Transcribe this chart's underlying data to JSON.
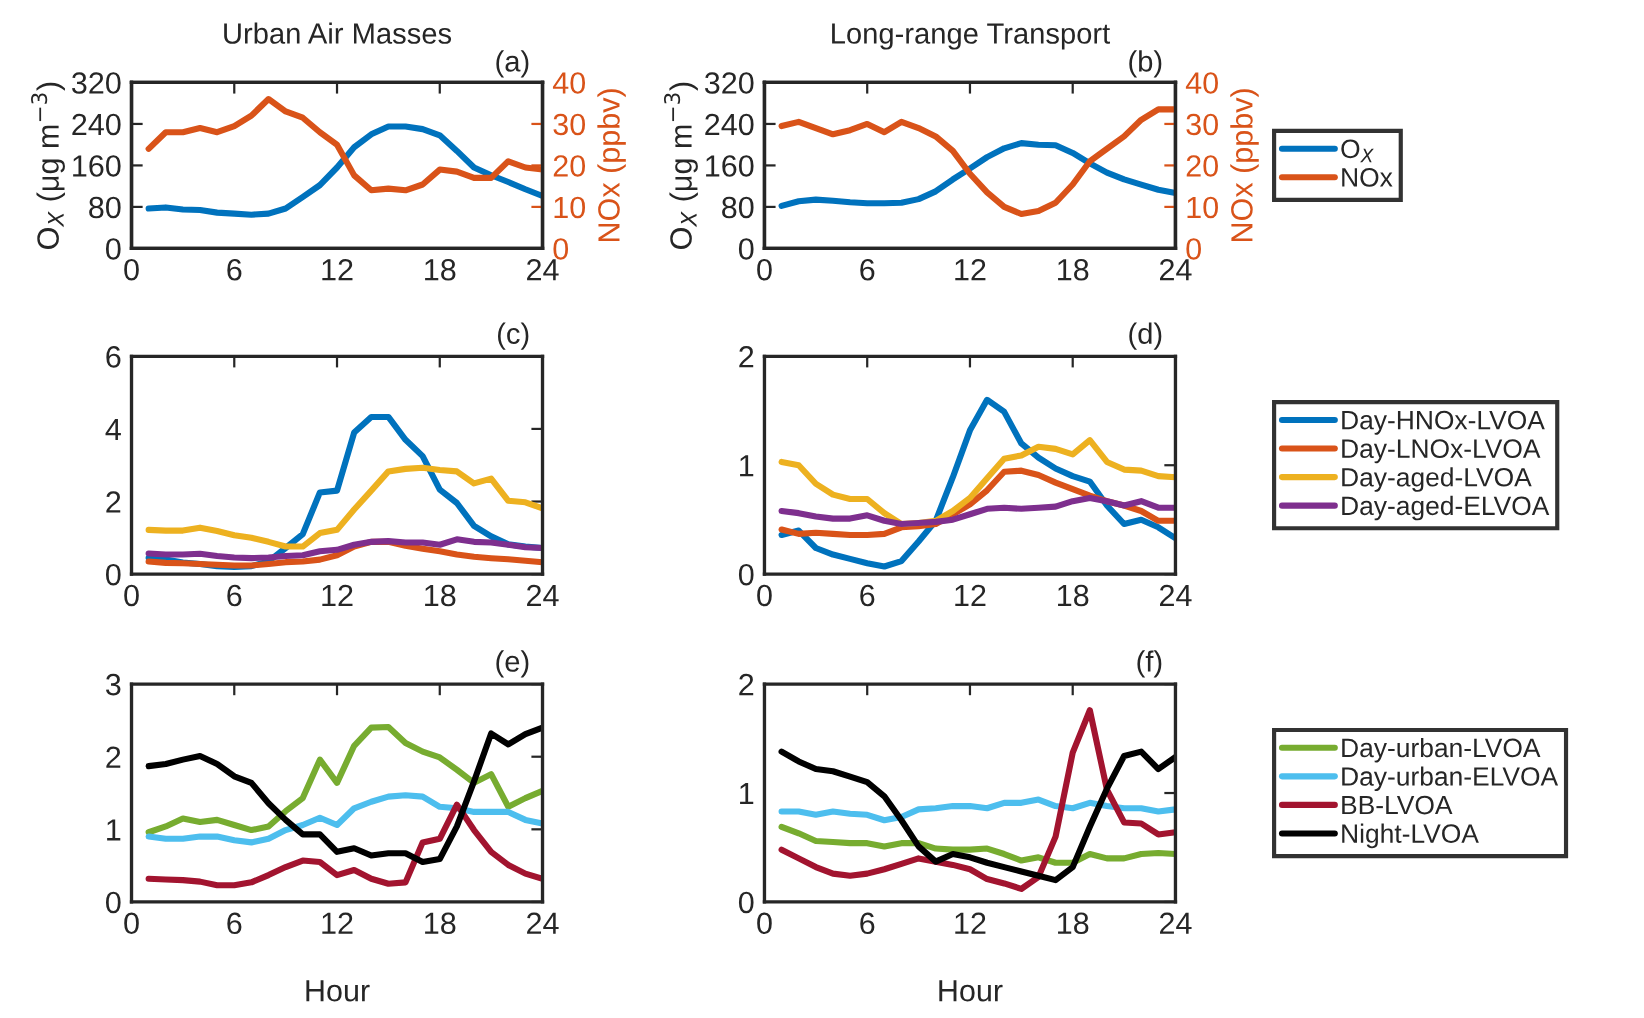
{
  "chart_data": [
    {
      "type": "line",
      "title": "Urban Air Masses",
      "annotations": [
        "(a)"
      ],
      "ylabel": "O$_{X}$ (μg m$^{−3}$)",
      "y2label": "NOx (ppbv)",
      "xlim": [
        0,
        24
      ],
      "xticks": [
        0,
        6,
        12,
        18,
        24
      ],
      "ylim": [
        0,
        320
      ],
      "yticks": [
        0,
        80,
        160,
        240,
        320
      ],
      "y2lim": [
        0,
        40
      ],
      "y2ticks": [
        0,
        10,
        20,
        30,
        40
      ],
      "legend": false,
      "grid": false,
      "x": [
        1,
        2,
        3,
        4,
        5,
        6,
        7,
        8,
        9,
        10,
        11,
        12,
        13,
        14,
        15,
        16,
        17,
        18,
        19,
        20,
        21,
        22,
        23,
        24
      ],
      "series": [
        {
          "color": "#0072bd",
          "values": [
            77,
            79,
            75,
            74,
            69,
            67,
            65,
            67,
            77,
            99,
            122,
            156,
            195,
            220,
            235,
            235,
            230,
            218,
            188,
            156,
            141,
            128,
            114,
            101
          ]
        },
        {
          "color": "#d95319",
          "axis": "y2",
          "values": [
            24,
            28,
            28,
            29,
            28,
            29.5,
            32,
            36,
            33,
            31.5,
            28,
            25,
            17.6,
            14,
            14.4,
            14,
            15.4,
            19,
            18.5,
            17,
            17,
            21,
            19.5,
            19
          ]
        }
      ]
    },
    {
      "type": "line",
      "title": "Long-range Transport",
      "annotations": [
        "(b)"
      ],
      "ylabel": "O$_{X}$ (μg m$^{−3}$)",
      "y2label": "NOx (ppbv)",
      "xlim": [
        0,
        24
      ],
      "xticks": [
        0,
        6,
        12,
        18,
        24
      ],
      "ylim": [
        0,
        320
      ],
      "yticks": [
        0,
        80,
        160,
        240,
        320
      ],
      "y2lim": [
        0,
        40
      ],
      "y2ticks": [
        0,
        10,
        20,
        30,
        40
      ],
      "legend": "right",
      "grid": false,
      "x": [
        1,
        2,
        3,
        4,
        5,
        6,
        7,
        8,
        9,
        10,
        11,
        12,
        13,
        14,
        15,
        16,
        17,
        18,
        19,
        20,
        21,
        22,
        23,
        24
      ],
      "series": [
        {
          "name": "O$_{X}$",
          "color": "#0072bd",
          "values": [
            82,
            91,
            94,
            92,
            89,
            87,
            87,
            88,
            95,
            110,
            133,
            154,
            176,
            193,
            203,
            200,
            199,
            184,
            164,
            146,
            133,
            123,
            113,
            107
          ]
        },
        {
          "name": "NOx",
          "color": "#d95319",
          "axis": "y2",
          "values": [
            29.5,
            30.5,
            29,
            27.5,
            28.5,
            30,
            28,
            30.5,
            29,
            27,
            23.5,
            18,
            13.5,
            10,
            8.3,
            9,
            11,
            15.4,
            21,
            24,
            27,
            31,
            33.5,
            33.5
          ]
        }
      ]
    },
    {
      "type": "line",
      "annotations": [
        "(c)"
      ],
      "xlim": [
        0,
        24
      ],
      "xticks": [
        0,
        6,
        12,
        18,
        24
      ],
      "ylim": [
        0,
        6
      ],
      "yticks": [
        0,
        2,
        4,
        6
      ],
      "legend": false,
      "grid": false,
      "x": [
        1,
        2,
        3,
        4,
        5,
        6,
        7,
        8,
        9,
        10,
        11,
        12,
        13,
        14,
        15,
        16,
        17,
        18,
        19,
        20,
        21,
        22,
        23,
        24
      ],
      "series": [
        {
          "color": "#0072bd",
          "values": [
            0.45,
            0.4,
            0.32,
            0.28,
            0.22,
            0.2,
            0.22,
            0.35,
            0.72,
            1.1,
            2.25,
            2.3,
            3.9,
            4.33,
            4.33,
            3.7,
            3.25,
            2.33,
            1.96,
            1.33,
            1.04,
            0.82,
            0.76,
            0.72
          ]
        },
        {
          "color": "#d95319",
          "values": [
            0.35,
            0.31,
            0.3,
            0.28,
            0.26,
            0.24,
            0.24,
            0.28,
            0.33,
            0.35,
            0.4,
            0.52,
            0.76,
            0.89,
            0.89,
            0.78,
            0.7,
            0.63,
            0.54,
            0.48,
            0.44,
            0.41,
            0.37,
            0.33
          ]
        },
        {
          "color": "#edb120",
          "values": [
            1.22,
            1.2,
            1.2,
            1.28,
            1.19,
            1.07,
            1.0,
            0.89,
            0.76,
            0.76,
            1.13,
            1.22,
            1.78,
            2.3,
            2.83,
            2.9,
            2.93,
            2.87,
            2.83,
            2.5,
            2.63,
            2.02,
            1.98,
            1.81
          ]
        },
        {
          "color": "#7e2f8e",
          "values": [
            0.57,
            0.54,
            0.54,
            0.56,
            0.5,
            0.46,
            0.44,
            0.46,
            0.5,
            0.52,
            0.63,
            0.67,
            0.81,
            0.89,
            0.91,
            0.87,
            0.87,
            0.81,
            0.96,
            0.89,
            0.87,
            0.81,
            0.74,
            0.72
          ]
        }
      ]
    },
    {
      "type": "line",
      "annotations": [
        "(d)"
      ],
      "xlim": [
        0,
        24
      ],
      "xticks": [
        0,
        6,
        12,
        18,
        24
      ],
      "ylim": [
        0,
        2
      ],
      "yticks": [
        0,
        1,
        2
      ],
      "legend": "right",
      "grid": false,
      "x": [
        1,
        2,
        3,
        4,
        5,
        6,
        7,
        8,
        9,
        10,
        11,
        12,
        13,
        14,
        15,
        16,
        17,
        18,
        19,
        20,
        21,
        22,
        23,
        24
      ],
      "series": [
        {
          "name": "Day-HNOx-LVOA",
          "color": "#0072bd",
          "values": [
            0.36,
            0.4,
            0.24,
            0.18,
            0.14,
            0.1,
            0.07,
            0.12,
            0.3,
            0.49,
            0.89,
            1.32,
            1.6,
            1.49,
            1.2,
            1.07,
            0.97,
            0.9,
            0.85,
            0.63,
            0.46,
            0.5,
            0.43,
            0.33
          ]
        },
        {
          "name": "Day-LNOx-LVOA",
          "color": "#d95319",
          "values": [
            0.41,
            0.37,
            0.38,
            0.37,
            0.36,
            0.36,
            0.37,
            0.43,
            0.44,
            0.46,
            0.55,
            0.64,
            0.77,
            0.94,
            0.95,
            0.91,
            0.84,
            0.78,
            0.72,
            0.67,
            0.63,
            0.58,
            0.49,
            0.49
          ]
        },
        {
          "name": "Day-aged-LVOA",
          "color": "#edb120",
          "values": [
            1.03,
            1.0,
            0.83,
            0.73,
            0.69,
            0.69,
            0.56,
            0.46,
            0.47,
            0.49,
            0.58,
            0.7,
            0.88,
            1.06,
            1.09,
            1.17,
            1.15,
            1.1,
            1.23,
            1.03,
            0.96,
            0.95,
            0.9,
            0.89
          ]
        },
        {
          "name": "Day-aged-ELVOA",
          "color": "#7e2f8e",
          "values": [
            0.58,
            0.56,
            0.53,
            0.51,
            0.51,
            0.54,
            0.49,
            0.46,
            0.47,
            0.48,
            0.5,
            0.55,
            0.6,
            0.61,
            0.6,
            0.61,
            0.62,
            0.67,
            0.7,
            0.67,
            0.63,
            0.67,
            0.61,
            0.61
          ]
        }
      ]
    },
    {
      "type": "line",
      "annotations": [
        "(e)"
      ],
      "xlabel": "Hour",
      "xlim": [
        0,
        24
      ],
      "xticks": [
        0,
        6,
        12,
        18,
        24
      ],
      "ylim": [
        0,
        3
      ],
      "yticks": [
        0,
        1,
        2,
        3
      ],
      "legend": false,
      "grid": false,
      "x": [
        1,
        2,
        3,
        4,
        5,
        6,
        7,
        8,
        9,
        10,
        11,
        12,
        13,
        14,
        15,
        16,
        17,
        18,
        19,
        20,
        21,
        22,
        23,
        24
      ],
      "series": [
        {
          "color": "#77ac30",
          "values": [
            0.96,
            1.04,
            1.15,
            1.1,
            1.13,
            1.06,
            0.99,
            1.04,
            1.25,
            1.43,
            1.96,
            1.64,
            2.15,
            2.4,
            2.41,
            2.19,
            2.07,
            1.99,
            1.82,
            1.64,
            1.76,
            1.31,
            1.43,
            1.53
          ]
        },
        {
          "color": "#4dbeee",
          "values": [
            0.9,
            0.87,
            0.87,
            0.9,
            0.9,
            0.85,
            0.82,
            0.87,
            0.99,
            1.06,
            1.16,
            1.06,
            1.29,
            1.38,
            1.45,
            1.47,
            1.45,
            1.31,
            1.29,
            1.24,
            1.24,
            1.24,
            1.13,
            1.08
          ]
        },
        {
          "color": "#a2142f",
          "values": [
            0.32,
            0.31,
            0.3,
            0.28,
            0.23,
            0.23,
            0.27,
            0.37,
            0.48,
            0.57,
            0.55,
            0.37,
            0.44,
            0.32,
            0.25,
            0.27,
            0.82,
            0.87,
            1.34,
            0.99,
            0.69,
            0.51,
            0.39,
            0.32
          ]
        },
        {
          "color": "#000000",
          "values": [
            1.87,
            1.9,
            1.96,
            2.01,
            1.9,
            1.73,
            1.64,
            1.36,
            1.13,
            0.93,
            0.93,
            0.69,
            0.74,
            0.64,
            0.67,
            0.67,
            0.55,
            0.59,
            1.04,
            1.66,
            2.32,
            2.17,
            2.31,
            2.4
          ]
        }
      ]
    },
    {
      "type": "line",
      "annotations": [
        "(f)"
      ],
      "xlabel": "Hour",
      "xlim": [
        0,
        24
      ],
      "xticks": [
        0,
        6,
        12,
        18,
        24
      ],
      "ylim": [
        0,
        2
      ],
      "yticks": [
        0,
        1,
        2
      ],
      "legend": "right",
      "grid": false,
      "x": [
        1,
        2,
        3,
        4,
        5,
        6,
        7,
        8,
        9,
        10,
        11,
        12,
        13,
        14,
        15,
        16,
        17,
        18,
        19,
        20,
        21,
        22,
        23,
        24
      ],
      "series": [
        {
          "name": "Day-urban-LVOA",
          "color": "#77ac30",
          "values": [
            0.69,
            0.63,
            0.56,
            0.55,
            0.54,
            0.54,
            0.51,
            0.54,
            0.54,
            0.49,
            0.48,
            0.48,
            0.49,
            0.44,
            0.38,
            0.41,
            0.36,
            0.36,
            0.44,
            0.4,
            0.4,
            0.44,
            0.45,
            0.44
          ]
        },
        {
          "name": "Day-urban-ELVOA",
          "color": "#4dbeee",
          "values": [
            0.83,
            0.83,
            0.8,
            0.83,
            0.81,
            0.8,
            0.75,
            0.78,
            0.85,
            0.86,
            0.88,
            0.88,
            0.86,
            0.91,
            0.91,
            0.94,
            0.88,
            0.86,
            0.91,
            0.88,
            0.86,
            0.86,
            0.83,
            0.85
          ]
        },
        {
          "name": "BB-LVOA",
          "color": "#a2142f",
          "values": [
            0.48,
            0.4,
            0.32,
            0.26,
            0.24,
            0.26,
            0.3,
            0.35,
            0.4,
            0.37,
            0.34,
            0.3,
            0.21,
            0.17,
            0.12,
            0.23,
            0.6,
            1.37,
            1.76,
            1.03,
            0.73,
            0.72,
            0.62,
            0.64
          ]
        },
        {
          "name": "Night-LVOA",
          "color": "#000000",
          "values": [
            1.38,
            1.29,
            1.22,
            1.2,
            1.15,
            1.1,
            0.97,
            0.75,
            0.51,
            0.37,
            0.44,
            0.41,
            0.36,
            0.32,
            0.28,
            0.24,
            0.2,
            0.32,
            0.69,
            1.04,
            1.34,
            1.38,
            1.22,
            1.33
          ]
        }
      ]
    }
  ]
}
